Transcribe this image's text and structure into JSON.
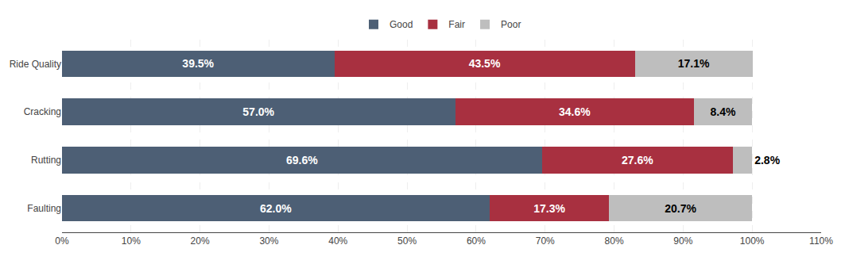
{
  "chart_data": {
    "type": "bar",
    "orientation": "horizontal",
    "stacked": true,
    "categories": [
      "Ride Quality",
      "Cracking",
      "Rutting",
      "Faulting"
    ],
    "series": [
      {
        "name": "Good",
        "color": "#4D5F75",
        "values": [
          39.5,
          57.0,
          69.6,
          62.0
        ],
        "value_labels": [
          "39.5%",
          "57.0%",
          "69.6%",
          "62.0%"
        ]
      },
      {
        "name": "Fair",
        "color": "#A83040",
        "values": [
          43.5,
          34.6,
          27.6,
          17.3
        ],
        "value_labels": [
          "43.5%",
          "34.6%",
          "27.6%",
          "17.3%"
        ]
      },
      {
        "name": "Poor",
        "color": "#BEBEBE",
        "values": [
          17.1,
          8.4,
          2.8,
          20.7
        ],
        "value_labels": [
          "17.1%",
          "8.4%",
          "2.8%",
          "20.7%"
        ]
      }
    ],
    "xlim": [
      0,
      110
    ],
    "xticks": [
      {
        "value": 0,
        "label": "0%"
      },
      {
        "value": 10,
        "label": "10%"
      },
      {
        "value": 20,
        "label": "20%"
      },
      {
        "value": 30,
        "label": "30%"
      },
      {
        "value": 40,
        "label": "40%"
      },
      {
        "value": 50,
        "label": "50%"
      },
      {
        "value": 60,
        "label": "60%"
      },
      {
        "value": 70,
        "label": "70%"
      },
      {
        "value": 80,
        "label": "80%"
      },
      {
        "value": 90,
        "label": "90%"
      },
      {
        "value": 100,
        "label": "100%"
      },
      {
        "value": 110,
        "label": "110%"
      }
    ],
    "grid": true,
    "legend": "top",
    "data_labels": true
  }
}
